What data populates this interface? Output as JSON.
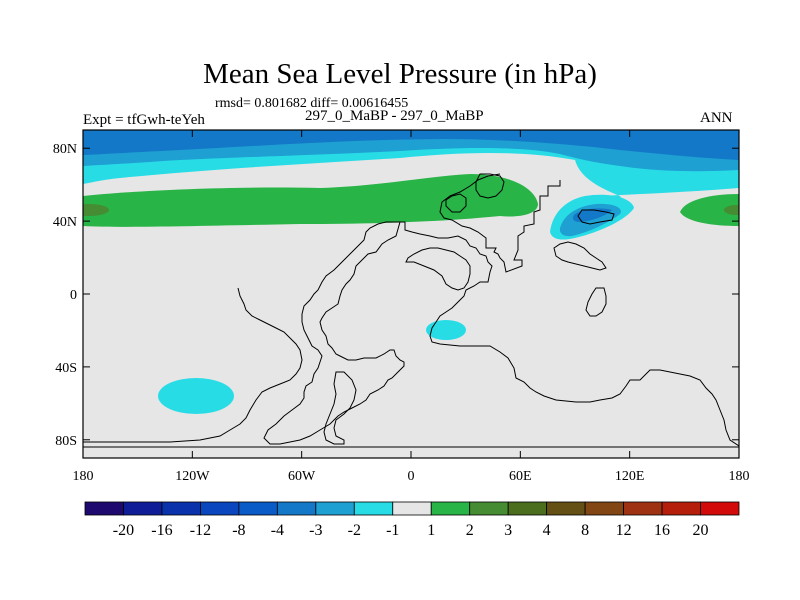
{
  "figure": {
    "title": "Mean Sea Level Pressure (in hPa)",
    "stats_line": "rmsd= 0.801682 diff= 0.00616455",
    "experiment_label": "Expt = tfGwh-teYeh",
    "case_line": "297_0_MaBP - 297_0_MaBP",
    "season": "ANN"
  },
  "map_axes": {
    "lat_ticks": [
      "80N",
      "40N",
      "0",
      "40S",
      "80S"
    ],
    "lon_ticks": [
      "180",
      "120W",
      "60W",
      "0",
      "60E",
      "120E",
      "180"
    ]
  },
  "colorbar": {
    "labels": [
      "-20",
      "-16",
      "-12",
      "-8",
      "-4",
      "-3",
      "-2",
      "-1",
      "1",
      "2",
      "3",
      "4",
      "8",
      "12",
      "16",
      "20"
    ],
    "colors": [
      "#1e0a6e",
      "#0f1e96",
      "#0a32aa",
      "#0a46be",
      "#0a5ac8",
      "#1478c8",
      "#1ea0d2",
      "#28dce6",
      "#e6e6e6",
      "#28b446",
      "#468c32",
      "#4b6e1e",
      "#645014",
      "#824614",
      "#a03214",
      "#b41e0a",
      "#d20a0a"
    ]
  },
  "chart_data": {
    "type": "heatmap",
    "title": "Mean Sea Level Pressure (in hPa)",
    "units": "hPa",
    "levels": [
      -20,
      -16,
      -12,
      -8,
      -4,
      -3,
      -2,
      -1,
      1,
      2,
      3,
      4,
      8,
      12,
      16,
      20
    ],
    "xlabel": "",
    "ylabel": "",
    "lon_range": [
      -180,
      180
    ],
    "lat_range": [
      -90,
      90
    ],
    "regions": [
      {
        "name": "arctic-cap",
        "level_range": [
          -4,
          -3
        ],
        "lat_range": [
          75,
          90
        ]
      },
      {
        "name": "north-polar-band",
        "level_range": [
          -3,
          -2
        ],
        "lat_range": [
          65,
          85
        ]
      },
      {
        "name": "subpolar-band",
        "level_range": [
          -2,
          -1
        ],
        "lat_range": [
          55,
          75
        ]
      },
      {
        "name": "midlatitude-high-belt",
        "level_range": [
          1,
          2
        ],
        "lat_range": [
          37,
          52
        ]
      },
      {
        "name": "east-asia-low",
        "level_range": [
          -4,
          -1
        ],
        "lat_range": [
          35,
          55
        ],
        "lon_range": [
          80,
          130
        ]
      },
      {
        "name": "south-pacific-low",
        "level_range": [
          -2,
          -1
        ],
        "lat_range": [
          -63,
          -45
        ],
        "lon_range": [
          -140,
          -100
        ]
      },
      {
        "name": "east-africa-low",
        "level_range": [
          -2,
          -1
        ],
        "lat_range": [
          -27,
          -17
        ],
        "lon_range": [
          15,
          30
        ]
      }
    ]
  }
}
